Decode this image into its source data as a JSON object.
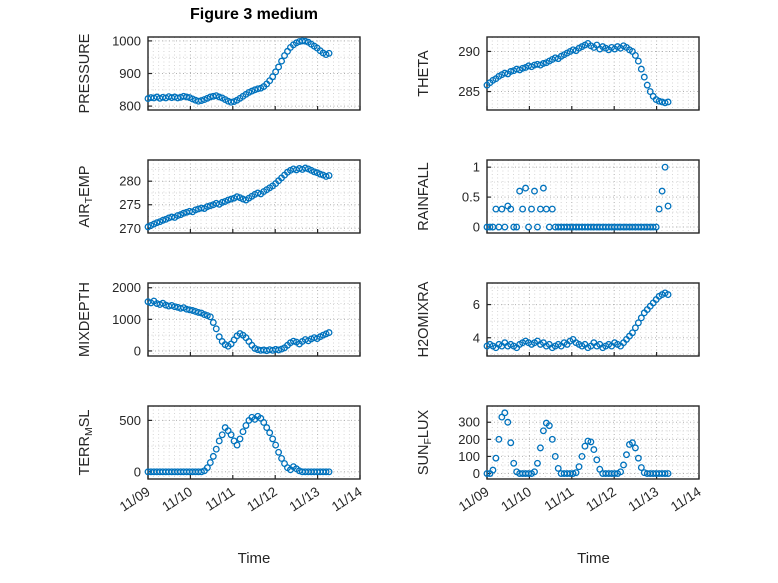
{
  "figure_title": "Figure 3 medium",
  "xlabel": "Time",
  "marker_color": "#0072BD",
  "xlim": [
    0,
    5
  ],
  "x_tick_positions": [
    0,
    1,
    2,
    3,
    4,
    5
  ],
  "x_tick_labels": [
    "11/09",
    "11/10",
    "11/11",
    "11/12",
    "11/13",
    "11/14"
  ],
  "x_days": [
    0,
    0.07,
    0.14,
    0.21,
    0.28,
    0.35,
    0.42,
    0.49,
    0.56,
    0.63,
    0.7,
    0.77,
    0.84,
    0.91,
    0.98,
    1.05,
    1.12,
    1.19,
    1.26,
    1.33,
    1.4,
    1.47,
    1.54,
    1.61,
    1.68,
    1.75,
    1.82,
    1.89,
    1.96,
    2.03,
    2.1,
    2.17,
    2.24,
    2.31,
    2.38,
    2.45,
    2.52,
    2.59,
    2.66,
    2.73,
    2.8,
    2.87,
    2.94,
    3.01,
    3.08,
    3.15,
    3.22,
    3.29,
    3.36,
    3.43,
    3.5,
    3.57,
    3.64,
    3.71,
    3.78,
    3.85,
    3.92,
    3.99,
    4.06,
    4.13,
    4.2,
    4.27
  ],
  "chart_data": [
    {
      "name": "pressure",
      "type": "scatter",
      "ylabel_parts": [
        {
          "text": "PRESSURE",
          "sub": false
        }
      ],
      "yticks": [
        800,
        900,
        1000
      ],
      "ylim": [
        788,
        1012
      ],
      "y": [
        823,
        826,
        825,
        828,
        824,
        827,
        825,
        829,
        826,
        828,
        825,
        827,
        830,
        828,
        826,
        822,
        818,
        815,
        817,
        820,
        824,
        828,
        830,
        832,
        828,
        825,
        820,
        815,
        812,
        814,
        818,
        824,
        830,
        836,
        842,
        846,
        850,
        853,
        855,
        860,
        868,
        878,
        890,
        905,
        920,
        938,
        955,
        968,
        980,
        988,
        994,
        998,
        1000,
        999,
        996,
        990,
        984,
        978,
        970,
        963,
        958,
        962
      ]
    },
    {
      "name": "theta",
      "type": "scatter",
      "ylabel_parts": [
        {
          "text": "THETA",
          "sub": false
        }
      ],
      "yticks": [
        285,
        290
      ],
      "ylim": [
        282.7,
        291.8
      ],
      "y": [
        285.8,
        286.1,
        286.4,
        286.6,
        286.9,
        287.1,
        287.3,
        287.2,
        287.5,
        287.6,
        287.8,
        287.7,
        287.9,
        288.0,
        288.2,
        288.1,
        288.3,
        288.4,
        288.3,
        288.5,
        288.6,
        288.8,
        289.0,
        289.2,
        289.1,
        289.4,
        289.6,
        289.8,
        290.0,
        290.2,
        290.1,
        290.4,
        290.6,
        290.8,
        291.0,
        290.7,
        290.5,
        290.8,
        290.3,
        290.6,
        290.4,
        290.2,
        290.5,
        290.3,
        290.6,
        290.4,
        290.7,
        290.5,
        290.2,
        290.0,
        289.5,
        288.8,
        287.8,
        286.8,
        285.8,
        285.0,
        284.4,
        284.0,
        283.8,
        283.7,
        283.6,
        283.7
      ]
    },
    {
      "name": "air-temp",
      "type": "scatter",
      "ylabel_parts": [
        {
          "text": "AIR",
          "sub": false
        },
        {
          "text": "T",
          "sub": true
        },
        {
          "text": "EMP",
          "sub": false
        }
      ],
      "yticks": [
        270,
        275,
        280
      ],
      "ylim": [
        269,
        284.5
      ],
      "y": [
        270.3,
        270.6,
        270.9,
        271.2,
        271.4,
        271.7,
        271.9,
        272.2,
        272.4,
        272.3,
        272.7,
        272.9,
        273.2,
        273.4,
        273.6,
        273.5,
        273.9,
        274.1,
        274.3,
        274.2,
        274.6,
        274.8,
        275.0,
        275.3,
        275.1,
        275.5,
        275.7,
        276.0,
        276.2,
        276.4,
        276.7,
        276.5,
        276.2,
        276.0,
        276.4,
        276.8,
        277.2,
        277.5,
        277.3,
        277.8,
        278.2,
        278.6,
        279.0,
        279.5,
        280.1,
        280.7,
        281.3,
        281.9,
        282.3,
        282.6,
        282.4,
        282.7,
        282.5,
        282.8,
        282.6,
        282.3,
        282.0,
        281.8,
        281.5,
        281.3,
        281.0,
        281.2
      ]
    },
    {
      "name": "rainfall",
      "type": "scatter",
      "ylabel_parts": [
        {
          "text": "RAINFALL",
          "sub": false
        }
      ],
      "yticks": [
        0,
        0.5,
        1
      ],
      "ylim": [
        -0.1,
        1.12
      ],
      "y": [
        0,
        0,
        0,
        0.3,
        0,
        0.3,
        0,
        0.35,
        0.3,
        0,
        0,
        0.6,
        0.3,
        0.65,
        0,
        0.3,
        0.6,
        0,
        0.3,
        0.65,
        0.3,
        0,
        0.3,
        0,
        0,
        0,
        0,
        0,
        0,
        0,
        0,
        0,
        0,
        0,
        0,
        0,
        0,
        0,
        0,
        0,
        0,
        0,
        0,
        0,
        0,
        0,
        0,
        0,
        0,
        0,
        0,
        0,
        0,
        0,
        0,
        0,
        0,
        0,
        0.3,
        0.6,
        1.0,
        0.35
      ]
    },
    {
      "name": "mixdepth",
      "type": "scatter",
      "ylabel_parts": [
        {
          "text": "MIXDEPTH",
          "sub": false
        }
      ],
      "yticks": [
        0,
        1000,
        2000
      ],
      "ylim": [
        -160,
        2150
      ],
      "y": [
        1560,
        1520,
        1580,
        1500,
        1470,
        1510,
        1450,
        1420,
        1440,
        1400,
        1380,
        1350,
        1370,
        1320,
        1300,
        1280,
        1250,
        1220,
        1200,
        1150,
        1120,
        1080,
        900,
        700,
        450,
        300,
        200,
        150,
        220,
        350,
        480,
        550,
        500,
        420,
        300,
        180,
        80,
        40,
        20,
        30,
        10,
        40,
        20,
        50,
        30,
        60,
        100,
        180,
        260,
        310,
        280,
        220,
        300,
        360,
        320,
        380,
        420,
        390,
        450,
        500,
        540,
        580
      ]
    },
    {
      "name": "h2omixra",
      "type": "scatter",
      "ylabel_parts": [
        {
          "text": "H2OMIXRA",
          "sub": false
        }
      ],
      "yticks": [
        4,
        6
      ],
      "ylim": [
        2.9,
        7.3
      ],
      "y": [
        3.5,
        3.6,
        3.5,
        3.4,
        3.6,
        3.5,
        3.7,
        3.5,
        3.6,
        3.5,
        3.4,
        3.6,
        3.7,
        3.8,
        3.7,
        3.6,
        3.7,
        3.8,
        3.6,
        3.7,
        3.5,
        3.6,
        3.4,
        3.5,
        3.6,
        3.5,
        3.7,
        3.6,
        3.8,
        3.9,
        3.7,
        3.6,
        3.5,
        3.6,
        3.4,
        3.5,
        3.7,
        3.5,
        3.6,
        3.4,
        3.5,
        3.6,
        3.5,
        3.7,
        3.6,
        3.5,
        3.7,
        3.9,
        4.1,
        4.3,
        4.6,
        4.9,
        5.2,
        5.5,
        5.7,
        5.9,
        6.1,
        6.3,
        6.5,
        6.6,
        6.7,
        6.6
      ]
    },
    {
      "name": "terr-msl",
      "type": "scatter",
      "ylabel_parts": [
        {
          "text": "TERR",
          "sub": false
        },
        {
          "text": "M",
          "sub": true
        },
        {
          "text": "SL",
          "sub": false
        }
      ],
      "yticks": [
        0,
        500
      ],
      "ylim": [
        -70,
        640
      ],
      "y": [
        0,
        0,
        0,
        0,
        0,
        0,
        0,
        0,
        0,
        0,
        0,
        0,
        0,
        0,
        0,
        0,
        0,
        0,
        0,
        10,
        40,
        90,
        150,
        220,
        300,
        360,
        430,
        400,
        360,
        300,
        260,
        320,
        390,
        450,
        500,
        530,
        510,
        540,
        520,
        480,
        430,
        380,
        320,
        260,
        190,
        130,
        80,
        40,
        20,
        50,
        30,
        10,
        0,
        0,
        0,
        0,
        0,
        0,
        0,
        0,
        0,
        0
      ]
    },
    {
      "name": "sun-flux",
      "type": "scatter",
      "ylabel_parts": [
        {
          "text": "SUN",
          "sub": false
        },
        {
          "text": "F",
          "sub": true
        },
        {
          "text": "LUX",
          "sub": false
        }
      ],
      "yticks": [
        0,
        100,
        200,
        300
      ],
      "ylim": [
        -32,
        395
      ],
      "y": [
        0,
        0,
        20,
        90,
        200,
        330,
        355,
        300,
        180,
        60,
        10,
        0,
        0,
        0,
        0,
        0,
        10,
        60,
        150,
        250,
        295,
        280,
        200,
        100,
        30,
        0,
        0,
        0,
        0,
        0,
        5,
        40,
        100,
        160,
        190,
        185,
        140,
        80,
        25,
        0,
        0,
        0,
        0,
        0,
        0,
        10,
        50,
        110,
        170,
        180,
        150,
        90,
        35,
        5,
        0,
        0,
        0,
        0,
        0,
        0,
        0,
        0
      ]
    }
  ]
}
